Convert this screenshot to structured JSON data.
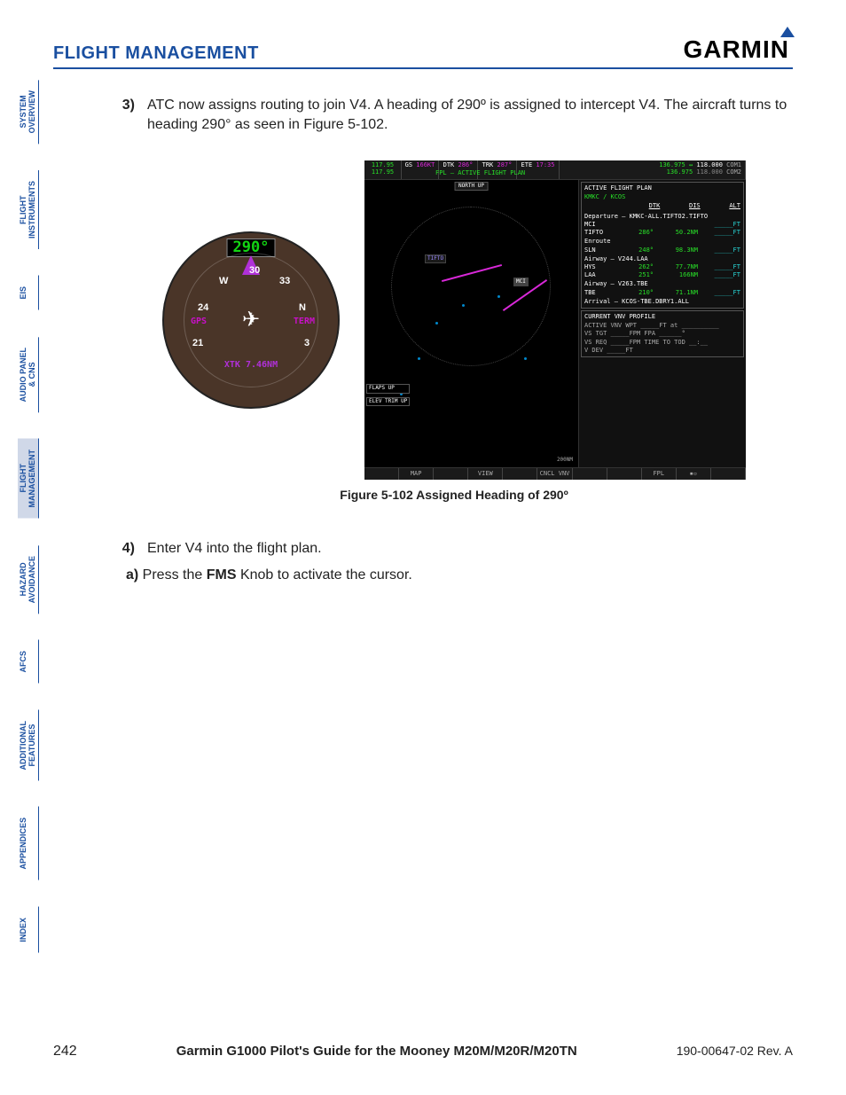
{
  "header": {
    "section_title": "FLIGHT MANAGEMENT",
    "brand": "GARMIN"
  },
  "sidebar": {
    "tabs": [
      {
        "label": "SYSTEM\nOVERVIEW",
        "active": false
      },
      {
        "label": "FLIGHT\nINSTRUMENTS",
        "active": false
      },
      {
        "label": "EIS",
        "active": false
      },
      {
        "label": "AUDIO PANEL\n& CNS",
        "active": false
      },
      {
        "label": "FLIGHT\nMANAGEMENT",
        "active": true
      },
      {
        "label": "HAZARD\nAVOIDANCE",
        "active": false
      },
      {
        "label": "AFCS",
        "active": false
      },
      {
        "label": "ADDITIONAL\nFEATURES",
        "active": false
      },
      {
        "label": "APPENDICES",
        "active": false
      },
      {
        "label": "INDEX",
        "active": false
      }
    ]
  },
  "steps": {
    "s3_num": "3)",
    "s3_text": "ATC now assigns routing to join V4. A heading of 290º is assigned to intercept V4. The aircraft turns to heading 290° as seen in Figure 5-102.",
    "s4_num": "4)",
    "s4_text": "Enter V4 into the flight plan.",
    "s4a_letter": "a)",
    "s4a_before": " Press the ",
    "s4a_bold": "FMS",
    "s4a_after": " Knob to activate the cursor."
  },
  "hsi": {
    "heading": "290°",
    "gps": "GPS",
    "term": "TERM",
    "xtk": "XTK 7.46NM",
    "label_30": "30",
    "label_W": "W",
    "label_33": "33",
    "label_24": "24",
    "label_N": "N",
    "label_21": "21",
    "label_3": "3"
  },
  "mfd": {
    "nav1": "117.95",
    "nav2": "117.95",
    "gs_label": "GS",
    "gs_val": "166KT",
    "dtk_label": "DTK",
    "dtk_val": "286°",
    "trk_label": "TRK",
    "trk_val": "287°",
    "ete_label": "ETE",
    "ete_val": "17:35",
    "com1a": "136.975",
    "com1b": "118.000",
    "com1l": "COM1",
    "com2a": "136.975",
    "com2b": "118.000",
    "com2l": "COM2",
    "page_title": "FPL – ACTIVE FLIGHT PLAN",
    "north_up": "NORTH UP",
    "map_tifto": "TIFTO",
    "map_mci": "MCI",
    "scale": "200NM",
    "flaps": "FLAPS\nUP",
    "elev": "ELEV\nTRIM\nUP",
    "fpl": {
      "box_title": "ACTIVE FLIGHT PLAN",
      "route": "KMKC / KCOS",
      "col_dtk": "DTK",
      "col_dis": "DIS",
      "col_alt": "ALT",
      "dep": "Departure – KMKC-ALL.TIFTO2.TIFTO",
      "rows": [
        {
          "wpt": "MCI",
          "dtk": "",
          "dis": "",
          "alt": "_____FT"
        },
        {
          "wpt": "TIFTO",
          "dtk": "286°",
          "dis": "50.2NM",
          "alt": "_____FT"
        }
      ],
      "enr": "Enroute",
      "enr_rows": [
        {
          "wpt": "SLN",
          "dtk": "248°",
          "dis": "98.3NM",
          "alt": "_____FT"
        }
      ],
      "awy1": "Airway – V244.LAA",
      "awy1_rows": [
        {
          "wpt": "HYS",
          "dtk": "262°",
          "dis": "77.7NM",
          "alt": "_____FT"
        },
        {
          "wpt": "LAA",
          "dtk": "251°",
          "dis": "166NM",
          "alt": "_____FT"
        }
      ],
      "awy2": "Airway – V263.TBE",
      "awy2_rows": [
        {
          "wpt": "TBE",
          "dtk": "210°",
          "dis": "71.1NM",
          "alt": "_____FT"
        }
      ],
      "arr": "Arrival – KCOS-TBE.DBRY1.ALL",
      "vnv_title": "CURRENT VNV PROFILE",
      "vnv_wpt": "ACTIVE VNV WPT   _____FT at __________",
      "vnv_tgt": "VS TGT     _____FPM   FPA   ______°",
      "vnv_req": "VS REQ     _____FPM   TIME TO TOD   __:__",
      "vnv_dev": "V DEV      _____FT"
    },
    "softkeys": {
      "sk1": "MAP",
      "sk2": "VIEW",
      "sk5": "CNCL VNV",
      "sk7": "FPL"
    }
  },
  "caption": "Figure 5-102  Assigned Heading of 290º",
  "footer": {
    "page": "242",
    "title": "Garmin G1000 Pilot's Guide for the Mooney M20M/M20R/M20TN",
    "rev": "190-00647-02  Rev. A"
  },
  "colors": {
    "brand_blue": "#1a4fa0",
    "hsi_bg": "#4a3528",
    "magenta": "#d828d8",
    "cyan": "#28d8d8",
    "green": "#28e028"
  }
}
